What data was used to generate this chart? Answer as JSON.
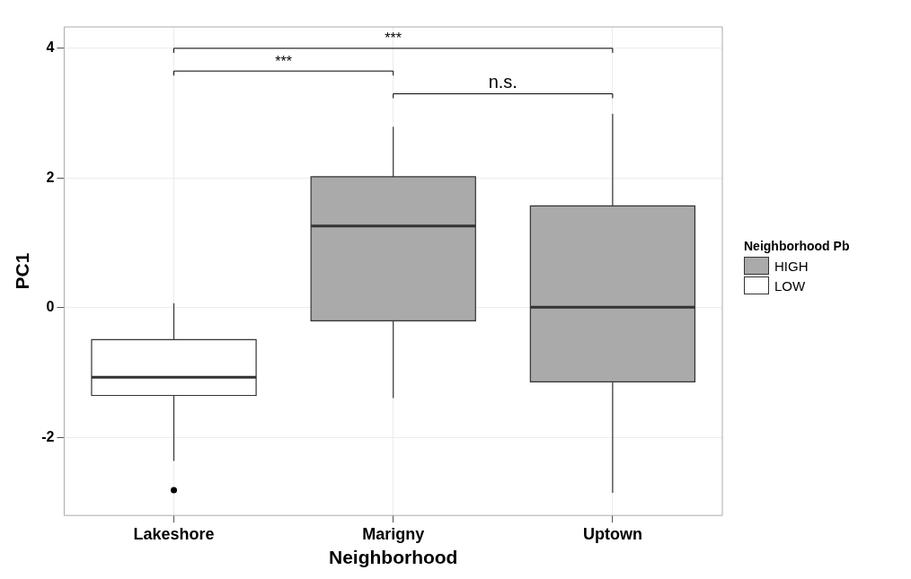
{
  "chart_data": {
    "type": "box",
    "xlabel": "Neighborhood",
    "ylabel": "PC1",
    "legend_title": "Neighborhood Pb",
    "legend": "right",
    "grid": true,
    "categories": [
      "Lakeshore",
      "Marigny",
      "Uptown"
    ],
    "ylim": [
      -3.2,
      4.33
    ],
    "yticks": [
      -2,
      0,
      2,
      4
    ],
    "series": [
      {
        "name": "HIGH",
        "color": "#aaaaaa",
        "boxes": [
          null,
          {
            "low": -1.39,
            "q1": -0.2,
            "median": 1.26,
            "q3": 2.02,
            "high": 2.79
          },
          {
            "low": -2.85,
            "q1": -1.14,
            "median": 0.01,
            "q3": 1.57,
            "high": 2.99
          }
        ]
      },
      {
        "name": "LOW",
        "color": "#ffffff",
        "boxes": [
          {
            "low": -2.36,
            "q1": -1.35,
            "median": -1.07,
            "q3": -0.49,
            "high": 0.07,
            "outliers": [
              -2.81
            ]
          },
          null,
          null
        ]
      }
    ],
    "annotations": [
      "***",
      "***",
      "n.s."
    ]
  }
}
